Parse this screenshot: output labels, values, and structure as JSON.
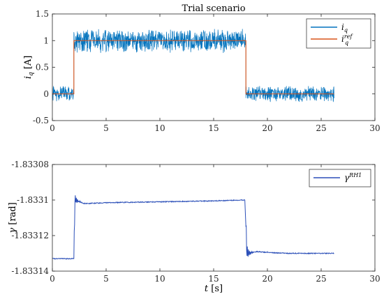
{
  "chart_data": [
    {
      "type": "line",
      "title": "Trial scenario",
      "ylabel": {
        "var": "i",
        "sub": "q",
        "unit": "[A]"
      },
      "xlim": [
        0,
        30
      ],
      "ylim": [
        -0.5,
        1.5
      ],
      "x_ticks": [
        "0",
        "5",
        "10",
        "15",
        "20",
        "25",
        "30"
      ],
      "y_ticks": [
        "-0.5",
        "0",
        "0.5",
        "1",
        "1.5"
      ],
      "legend": {
        "placement": "top-right"
      },
      "series": [
        {
          "key": "iq",
          "name_main": "i",
          "name_sub": "q",
          "name_sup": "",
          "color": "#0072BD",
          "segments": [
            {
              "x": [
                0,
                2
              ],
              "level": 0,
              "noise": 0.16
            },
            {
              "x": [
                2,
                18
              ],
              "level": 1,
              "noise": 0.24
            },
            {
              "x": [
                18,
                26.2
              ],
              "level": 0,
              "noise": 0.16
            }
          ]
        },
        {
          "key": "iqref",
          "name_main": "i",
          "name_sub": "q",
          "name_sup": "ref",
          "color": "#D95319",
          "x": [
            0,
            2,
            2,
            18,
            18,
            26.2
          ],
          "y": [
            0,
            0,
            1,
            1,
            0,
            0
          ]
        }
      ]
    },
    {
      "type": "line",
      "title": "",
      "ylabel": {
        "var": "γ",
        "sub": "",
        "unit": "[rad]"
      },
      "xlabel": {
        "var": "t",
        "unit": "[s]"
      },
      "xlim": [
        0,
        30
      ],
      "ylim": [
        -1.83314,
        -1.83308
      ],
      "x_ticks": [
        "0",
        "5",
        "10",
        "15",
        "20",
        "25",
        "30"
      ],
      "y_ticks": [
        "-1.83314",
        "-1.83312",
        "-1.8331",
        "-1.83308"
      ],
      "legend": {
        "placement": "top-right"
      },
      "series": [
        {
          "key": "gamma",
          "name_main": "γ",
          "name_sub": "",
          "name_sup": "RH1",
          "color": "#2B4FB8",
          "points": [
            [
              0,
              -1.833133
            ],
            [
              2,
              -1.833133
            ],
            [
              2.1,
              -1.8331
            ],
            [
              3,
              -1.833102
            ],
            [
              5,
              -1.8331015
            ],
            [
              10,
              -1.833101
            ],
            [
              15,
              -1.8331005
            ],
            [
              17.9,
              -1.8331
            ],
            [
              18.1,
              -1.83313
            ],
            [
              19,
              -1.833129
            ],
            [
              20,
              -1.8331295
            ],
            [
              22,
              -1.83313
            ],
            [
              26.2,
              -1.83313
            ]
          ]
        }
      ]
    }
  ]
}
